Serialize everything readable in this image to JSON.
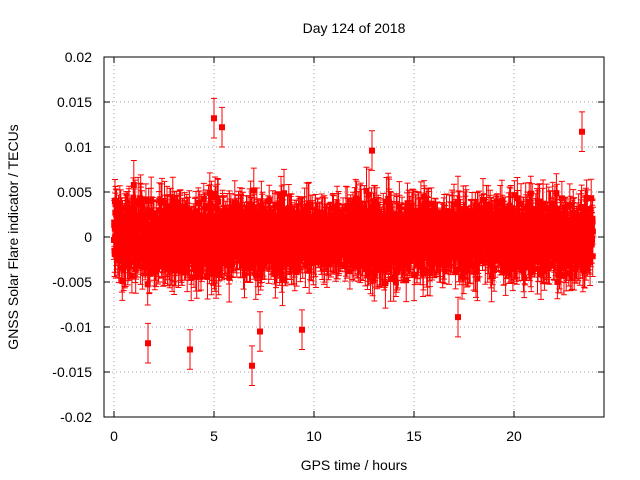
{
  "chart_data": {
    "type": "scatter",
    "title": "Day 124 of 2018",
    "xlabel": "GPS time / hours",
    "ylabel": "GNSS Solar Flare indicator / TECUs",
    "xlim": [
      -0.5,
      24.5
    ],
    "ylim": [
      -0.02,
      0.02
    ],
    "xticks": [
      0,
      5,
      10,
      15,
      20
    ],
    "xtick_labels": [
      "0",
      "5",
      "10",
      "15",
      "20"
    ],
    "yticks": [
      -0.02,
      -0.015,
      -0.01,
      -0.005,
      0,
      0.005,
      0.01,
      0.015,
      0.02
    ],
    "ytick_labels": [
      "-0.02",
      "-0.015",
      "-0.01",
      "-0.005",
      "0",
      "0.005",
      "0.01",
      "0.015",
      "0.02"
    ],
    "grid": true,
    "series": [
      {
        "color": "#ff0000",
        "marker": "square",
        "error_bars": true,
        "x_range": [
          0,
          23.95
        ],
        "sample_interval_hours": 0.0083,
        "typical_abs_value": 0.003,
        "typical_error": 0.0022,
        "notable_points": [
          {
            "x": 5.0,
            "y": 0.0132
          },
          {
            "x": 5.4,
            "y": 0.0122
          },
          {
            "x": 23.4,
            "y": 0.0117
          },
          {
            "x": 6.9,
            "y": -0.0143
          },
          {
            "x": 3.8,
            "y": -0.0125
          },
          {
            "x": 1.7,
            "y": -0.0118
          },
          {
            "x": 9.4,
            "y": -0.0103
          },
          {
            "x": 7.3,
            "y": -0.0105
          },
          {
            "x": 12.9,
            "y": 0.0096
          },
          {
            "x": 17.2,
            "y": -0.0089
          }
        ]
      }
    ]
  }
}
